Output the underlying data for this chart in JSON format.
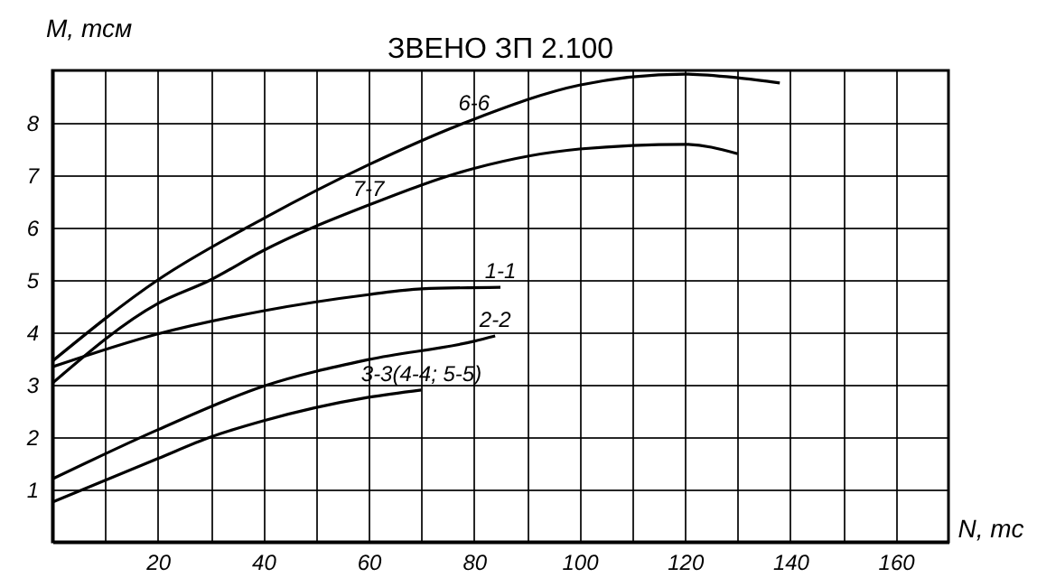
{
  "chart_data": {
    "type": "line",
    "title": "ЗВЕНО   ЗП   2.100",
    "xlabel": "N, тс",
    "ylabel": "M, тсм",
    "xlim": [
      0,
      170
    ],
    "ylim": [
      0,
      9
    ],
    "xticks": [
      {
        "value": 10,
        "label": null
      },
      20,
      {
        "value": 30,
        "label": null
      },
      40,
      {
        "value": 50,
        "label": null
      },
      60,
      {
        "value": 70,
        "label": null
      },
      80,
      {
        "value": 90,
        "label": null
      },
      100,
      {
        "value": 110,
        "label": null
      },
      120,
      {
        "value": 130,
        "label": null
      },
      140,
      {
        "value": 150,
        "label": null
      },
      160
    ],
    "yticks": [
      1,
      2,
      3,
      4,
      5,
      6,
      7,
      8
    ],
    "grid": true,
    "legend": false,
    "line_style": "solid",
    "series": [
      {
        "name": "6-6",
        "color": "#000000",
        "x": [
          0,
          20,
          40,
          60,
          80,
          100,
          120,
          130,
          138
        ],
        "values": [
          3.45,
          5.0,
          6.17,
          7.2,
          8.07,
          8.72,
          8.93,
          8.86,
          8.76
        ]
      },
      {
        "name": "7-7",
        "color": "#000000",
        "x": [
          0,
          20,
          30,
          40,
          60,
          80,
          100,
          120,
          130
        ],
        "values": [
          3.03,
          4.55,
          5.0,
          5.56,
          6.43,
          7.13,
          7.5,
          7.59,
          7.41
        ]
      },
      {
        "name": "1-1",
        "color": "#000000",
        "x": [
          0,
          20,
          40,
          60,
          70,
          85
        ],
        "values": [
          3.34,
          3.97,
          4.41,
          4.72,
          4.83,
          4.86
        ]
      },
      {
        "name": "2-2",
        "color": "#000000",
        "x": [
          0,
          20,
          40,
          60,
          80,
          84
        ],
        "values": [
          1.2,
          2.14,
          2.97,
          3.48,
          3.83,
          3.93
        ]
      },
      {
        "name": "3-3(4-4; 5-5)",
        "color": "#000000",
        "x": [
          0,
          20,
          30,
          40,
          60,
          70
        ],
        "values": [
          0.76,
          1.59,
          2.0,
          2.31,
          2.76,
          2.9
        ]
      }
    ]
  }
}
